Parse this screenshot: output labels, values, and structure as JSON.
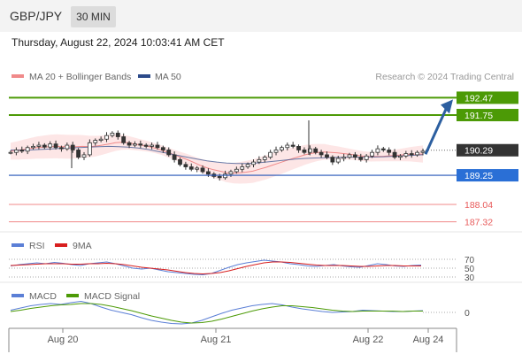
{
  "header": {
    "symbol": "GBP/JPY",
    "timeframe": "30 MIN"
  },
  "datetime": "Thursday, August 22, 2024 10:03:41 AM CET",
  "legend": {
    "ma20": "MA 20 + Bollinger Bands",
    "ma50": "MA 50",
    "research": "Research © 2024 Trading Central"
  },
  "colors": {
    "green": "#4c9a06",
    "blue": "#2455b8",
    "red": "#e85a5a",
    "dark": "#333333",
    "band": "#fce0e0",
    "candle": "#333333",
    "rsi": "#5b7fd6",
    "nine_ma": "#d81e1e",
    "macd": "#5b7fd6",
    "signal": "#4c9a06"
  },
  "chart_data": [
    {
      "type": "candlestick",
      "x_labels": [
        "Aug 20",
        "Aug 21",
        "Aug 22",
        "Aug 24"
      ],
      "ylim": [
        186.9,
        193.0
      ],
      "levels": [
        {
          "value": 192.47,
          "label": "192.47",
          "style": "green-box"
        },
        {
          "value": 191.75,
          "label": "191.75",
          "style": "green-box"
        },
        {
          "value": 190.29,
          "label": "190.29",
          "style": "dark-box"
        },
        {
          "value": 189.25,
          "label": "189.25",
          "style": "blue-box"
        },
        {
          "value": 188.04,
          "label": "188.04",
          "style": "red-text"
        },
        {
          "value": 187.32,
          "label": "187.32",
          "style": "red-text"
        }
      ],
      "closes": [
        190.2,
        190.3,
        190.25,
        190.4,
        190.45,
        190.5,
        190.42,
        190.55,
        190.4,
        190.35,
        190.5,
        190.3,
        190.0,
        190.1,
        190.6,
        190.7,
        190.75,
        190.9,
        191.0,
        190.85,
        190.6,
        190.5,
        190.55,
        190.5,
        190.45,
        190.5,
        190.4,
        190.3,
        190.1,
        189.9,
        189.7,
        189.6,
        189.5,
        189.55,
        189.4,
        189.3,
        189.2,
        189.15,
        189.3,
        189.4,
        189.5,
        189.6,
        189.7,
        189.8,
        189.9,
        190.0,
        190.2,
        190.3,
        190.4,
        190.5,
        190.45,
        190.3,
        190.2,
        190.35,
        190.2,
        190.1,
        190.0,
        189.8,
        189.95,
        190.0,
        190.1,
        190.0,
        189.9,
        190.05,
        190.2,
        190.35,
        190.3,
        190.2,
        190.0,
        190.05,
        190.15,
        190.1,
        190.2,
        190.25
      ],
      "ma20": [
        190.25,
        190.28,
        190.32,
        190.36,
        190.4,
        190.42,
        190.44,
        190.45,
        190.44,
        190.43,
        190.44,
        190.45,
        190.44,
        190.46,
        190.5,
        190.55,
        190.6,
        190.62,
        190.6,
        190.55,
        190.5,
        190.45,
        190.38,
        190.3,
        190.2,
        190.1,
        190.0,
        189.9,
        189.78,
        189.66,
        189.56,
        189.48,
        189.42,
        189.36,
        189.34,
        189.35,
        189.38,
        189.42,
        189.5,
        189.58,
        189.67,
        189.76,
        189.85,
        189.94,
        190.02,
        190.1,
        190.16,
        190.2,
        190.22,
        190.2,
        190.18,
        190.15,
        190.12,
        190.08,
        190.04,
        190.02,
        190.03,
        190.04,
        190.06,
        190.08,
        190.1,
        190.12,
        190.13,
        190.13
      ],
      "ma50": [
        190.3,
        190.3,
        190.3,
        190.32,
        190.34,
        190.36,
        190.38,
        190.4,
        190.42,
        190.44,
        190.45,
        190.44,
        190.42,
        190.38,
        190.32,
        190.24,
        190.16,
        190.08,
        190.0,
        189.92,
        189.85,
        189.8,
        189.76,
        189.74,
        189.74,
        189.76,
        189.8,
        189.84,
        189.88,
        189.92,
        189.95,
        189.97,
        189.98,
        189.99,
        190.0,
        190.0,
        190.0,
        190.01,
        190.02,
        190.04,
        190.06,
        190.08,
        190.1
      ],
      "forecast_arrow": {
        "from": 190.2,
        "to": 192.47
      }
    },
    {
      "type": "line",
      "name": "RSI",
      "legend": [
        "RSI",
        "9MA"
      ],
      "levels": [
        70,
        50,
        30
      ],
      "level_labels": [
        "70",
        "50",
        "30"
      ],
      "rsi": [
        55,
        58,
        60,
        62,
        60,
        63,
        61,
        58,
        56,
        60,
        62,
        64,
        60,
        55,
        50,
        48,
        50,
        46,
        42,
        40,
        38,
        36,
        35,
        38,
        45,
        52,
        58,
        62,
        65,
        68,
        66,
        64,
        60,
        58,
        55,
        54,
        56,
        58,
        55,
        53,
        52,
        56,
        60,
        58,
        55,
        54,
        56,
        57
      ],
      "ma9": [
        56,
        57,
        58,
        59,
        60,
        60,
        60,
        59,
        59,
        60,
        60,
        61,
        60,
        58,
        55,
        52,
        50,
        48,
        46,
        43,
        40,
        38,
        37,
        38,
        40,
        44,
        49,
        54,
        58,
        62,
        64,
        64,
        63,
        61,
        59,
        57,
        56,
        56,
        56,
        55,
        54,
        54,
        55,
        56,
        56,
        55,
        55,
        55
      ]
    },
    {
      "type": "line",
      "name": "MACD",
      "legend": [
        "MACD",
        "MACD Signal"
      ],
      "zero_label": "0",
      "macd": [
        0.05,
        0.1,
        0.15,
        0.18,
        0.2,
        0.18,
        0.22,
        0.25,
        0.2,
        0.12,
        0.05,
        0.0,
        -0.05,
        -0.12,
        -0.18,
        -0.22,
        -0.25,
        -0.26,
        -0.24,
        -0.18,
        -0.1,
        -0.02,
        0.05,
        0.1,
        0.15,
        0.18,
        0.2,
        0.17,
        0.12,
        0.08,
        0.05,
        0.02,
        0.0,
        0.01,
        0.02,
        0.05,
        0.04,
        0.03,
        0.02,
        0.02,
        0.03,
        0.04
      ],
      "signal": [
        0.02,
        0.05,
        0.09,
        0.12,
        0.15,
        0.17,
        0.18,
        0.2,
        0.2,
        0.18,
        0.14,
        0.09,
        0.04,
        -0.02,
        -0.08,
        -0.13,
        -0.18,
        -0.22,
        -0.24,
        -0.23,
        -0.2,
        -0.15,
        -0.09,
        -0.03,
        0.03,
        0.08,
        0.12,
        0.15,
        0.15,
        0.13,
        0.11,
        0.08,
        0.05,
        0.03,
        0.02,
        0.03,
        0.03,
        0.03,
        0.03,
        0.02,
        0.03,
        0.03
      ]
    }
  ]
}
